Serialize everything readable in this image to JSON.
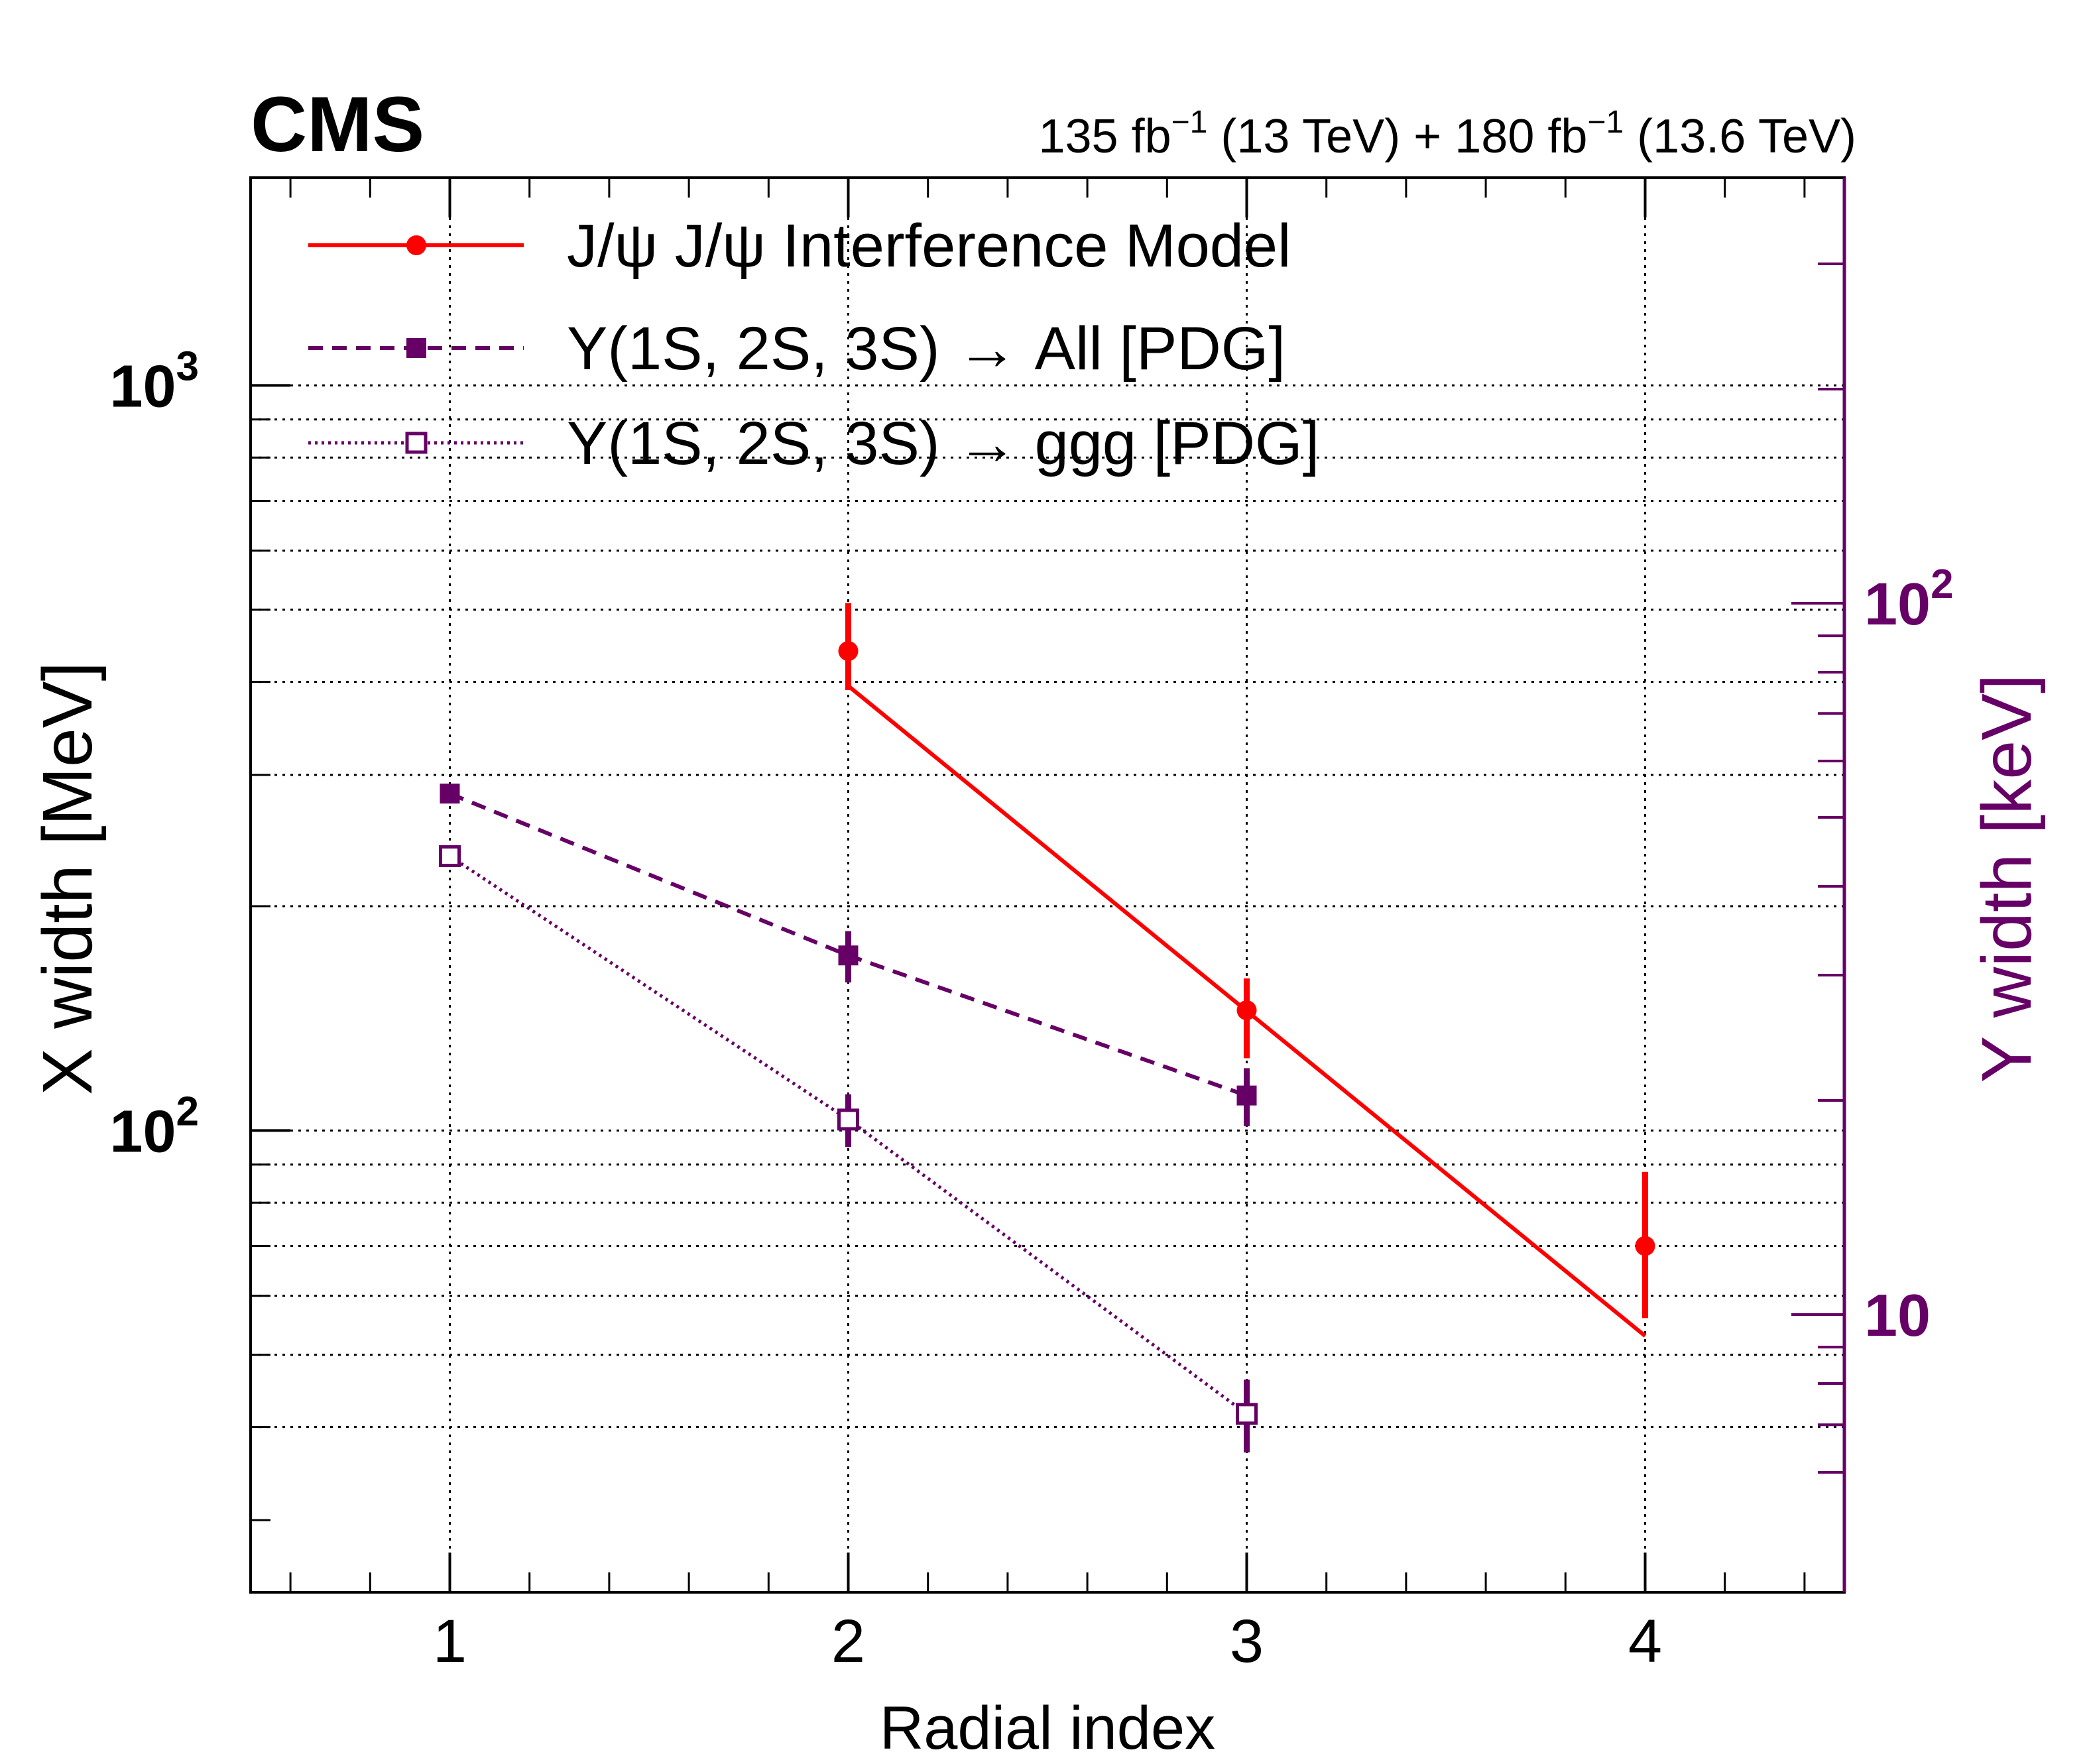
{
  "colors": {
    "red": "#ff0000",
    "purple": "#660066",
    "text": "#000000"
  },
  "header": {
    "experiment": "CMS",
    "lumi_parts": [
      "135 fb",
      "−1",
      " (13 TeV) + 180 fb",
      "−1",
      " (13.6 TeV)"
    ]
  },
  "chart_data": {
    "type": "line",
    "x_label": "Radial index",
    "y_label_left": "X width [MeV]",
    "y_label_right": "Υ width [keV]",
    "x_range": [
      0.5,
      4.5
    ],
    "x_ticks": [
      "1",
      "2",
      "3",
      "4"
    ],
    "y_left": {
      "scale": "log",
      "range": [
        24,
        1900
      ],
      "ticks": [
        {
          "base": "10",
          "exp": "2"
        },
        {
          "base": "10",
          "exp": "3"
        }
      ]
    },
    "y_right": {
      "scale": "log",
      "ticks": [
        "10",
        {
          "base": "10",
          "exp": "2"
        }
      ]
    },
    "series": [
      {
        "name": "J/ψ J/ψ Interference Model",
        "axis": "left",
        "line": "solid",
        "marker": "circle",
        "color": "#ff0000",
        "points": [
          {
            "x": 2,
            "y": 440,
            "lo": 390,
            "hi": 510
          },
          {
            "x": 3,
            "y": 145,
            "lo": 125,
            "hi": 160
          },
          {
            "x": 4,
            "y": 70,
            "lo": 56,
            "hi": 88
          }
        ],
        "model_line": [
          {
            "x": 2,
            "y": 395
          },
          {
            "x": 4,
            "y": 53
          }
        ]
      },
      {
        "name": "Υ(1S, 2S, 3S) → All [PDG]",
        "axis": "right",
        "line": "dashed",
        "marker": "square-filled",
        "color": "#660066",
        "points": [
          {
            "x": 1,
            "y": 54.0,
            "lo": 52.5,
            "hi": 55.5
          },
          {
            "x": 2,
            "y": 31.98,
            "lo": 29.3,
            "hi": 34.6
          },
          {
            "x": 3,
            "y": 20.32,
            "lo": 18.4,
            "hi": 22.2
          }
        ]
      },
      {
        "name": "Υ(1S, 2S, 3S) → ggg [PDG]",
        "axis": "right",
        "line": "dotted",
        "marker": "square-open",
        "color": "#660066",
        "points": [
          {
            "x": 1,
            "y": 44.1,
            "lo": 43.0,
            "hi": 45.2
          },
          {
            "x": 2,
            "y": 18.8,
            "lo": 17.2,
            "hi": 20.4
          },
          {
            "x": 3,
            "y": 7.25,
            "lo": 6.4,
            "hi": 8.1
          }
        ]
      }
    ],
    "grid": true,
    "legend_position": "top-left"
  }
}
